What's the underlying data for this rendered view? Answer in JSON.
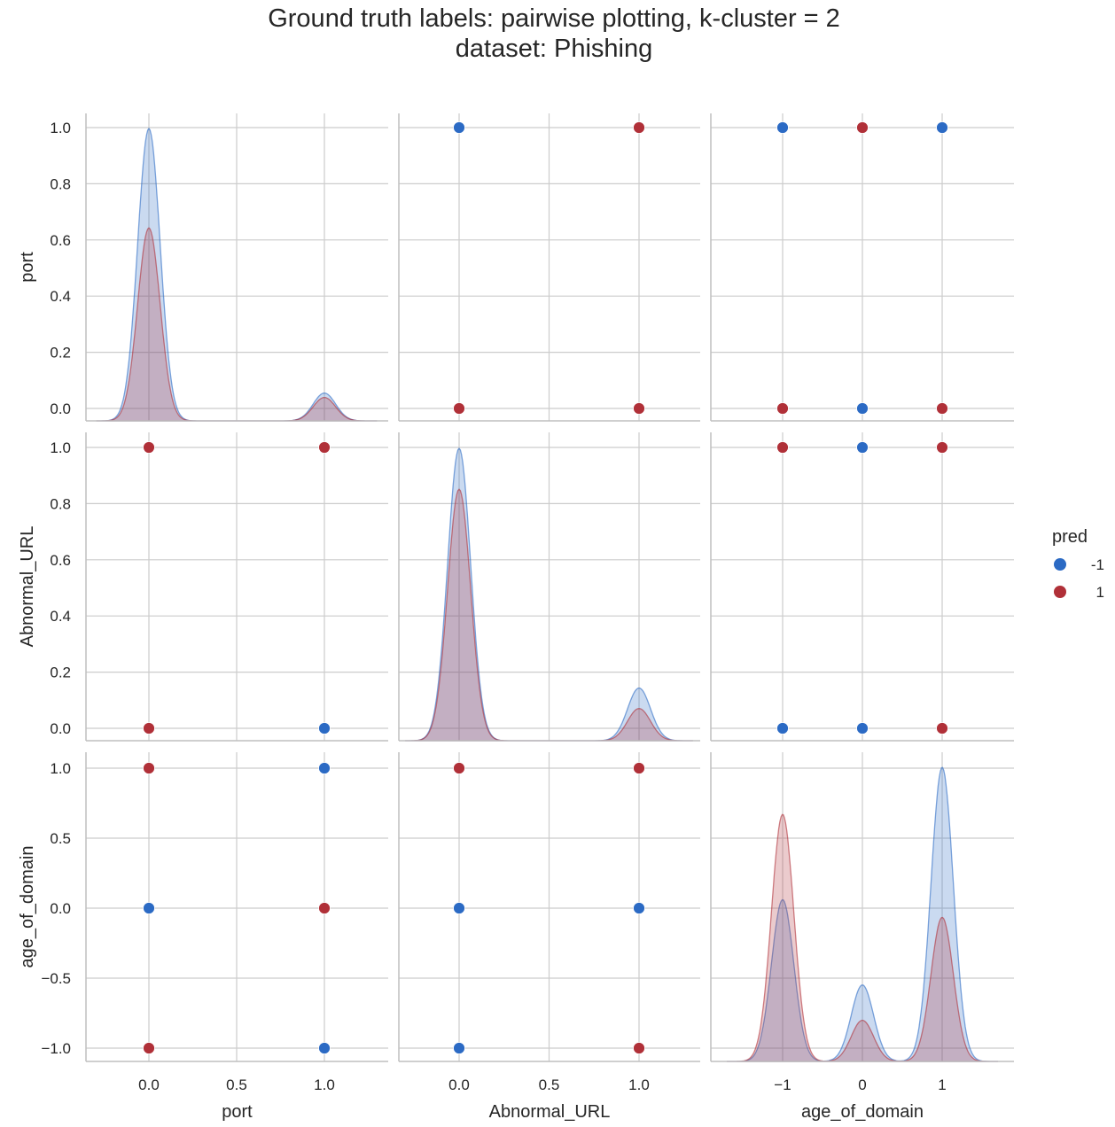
{
  "title": {
    "line1": "Ground truth labels: pairwise plotting, k-cluster = 2",
    "line2": "dataset: Phishing"
  },
  "colors": {
    "neg1": "#2b6ac4",
    "pos1": "#b03038",
    "grid": "#cccccc",
    "spine": "#bfbfbf"
  },
  "chart_data": {
    "type": "scatter",
    "kind": "pairplot",
    "variables": [
      "port",
      "Abnormal_URL",
      "age_of_domain"
    ],
    "x_ticks": {
      "port": [
        "0.0",
        "0.5",
        "1.0"
      ],
      "Abnormal_URL": [
        "0.0",
        "0.5",
        "1.0"
      ],
      "age_of_domain": [
        "−1",
        "0",
        "1"
      ]
    },
    "y_ticks": {
      "port": [
        "0.0",
        "0.2",
        "0.4",
        "0.6",
        "0.8",
        "1.0"
      ],
      "Abnormal_URL": [
        "0.0",
        "0.2",
        "0.4",
        "0.6",
        "0.8",
        "1.0"
      ],
      "age_of_domain": [
        "−1.0",
        "−0.5",
        "0.0",
        "0.5",
        "1.0"
      ]
    },
    "legend": {
      "title": "pred",
      "placement": "right",
      "entries": [
        {
          "label": "-1",
          "color": "#2b6ac4"
        },
        {
          "label": "1",
          "color": "#b03038"
        }
      ]
    },
    "scatter": {
      "port|Abnormal_URL": [
        {
          "x": 0,
          "y": 1,
          "pred": "1"
        },
        {
          "x": 1,
          "y": 1,
          "pred": "1"
        },
        {
          "x": 0,
          "y": 0,
          "pred": "1"
        },
        {
          "x": 1,
          "y": 0,
          "pred": "-1"
        }
      ],
      "port|age_of_domain": [
        {
          "x": 0,
          "y": 1,
          "pred": "1"
        },
        {
          "x": 1,
          "y": 1,
          "pred": "-1"
        },
        {
          "x": 0,
          "y": 0,
          "pred": "-1"
        },
        {
          "x": 1,
          "y": 0,
          "pred": "1"
        },
        {
          "x": 0,
          "y": -1,
          "pred": "1"
        },
        {
          "x": 1,
          "y": -1,
          "pred": "-1"
        }
      ],
      "Abnormal_URL|port": [
        {
          "x": 0,
          "y": 1,
          "pred": "-1"
        },
        {
          "x": 1,
          "y": 1,
          "pred": "1"
        },
        {
          "x": 0,
          "y": 0,
          "pred": "1"
        },
        {
          "x": 1,
          "y": 0,
          "pred": "1"
        }
      ],
      "Abnormal_URL|age_of_domain": [
        {
          "x": 0,
          "y": 1,
          "pred": "1"
        },
        {
          "x": 1,
          "y": 1,
          "pred": "1"
        },
        {
          "x": 0,
          "y": 0,
          "pred": "-1"
        },
        {
          "x": 1,
          "y": 0,
          "pred": "-1"
        },
        {
          "x": 0,
          "y": -1,
          "pred": "-1"
        },
        {
          "x": 1,
          "y": -1,
          "pred": "1"
        }
      ],
      "age_of_domain|port": [
        {
          "x": -1,
          "y": 1,
          "pred": "-1"
        },
        {
          "x": 0,
          "y": 1,
          "pred": "1"
        },
        {
          "x": 1,
          "y": 1,
          "pred": "-1"
        },
        {
          "x": -1,
          "y": 0,
          "pred": "1"
        },
        {
          "x": 0,
          "y": 0,
          "pred": "-1"
        },
        {
          "x": 1,
          "y": 0,
          "pred": "1"
        }
      ],
      "age_of_domain|Abnormal_URL": [
        {
          "x": -1,
          "y": 1,
          "pred": "1"
        },
        {
          "x": 0,
          "y": 1,
          "pred": "-1"
        },
        {
          "x": 1,
          "y": 1,
          "pred": "1"
        },
        {
          "x": -1,
          "y": 0,
          "pred": "-1"
        },
        {
          "x": 0,
          "y": 0,
          "pred": "-1"
        },
        {
          "x": 1,
          "y": 0,
          "pred": "1"
        }
      ]
    },
    "kde": {
      "port": {
        "-1": [
          {
            "mu": 0,
            "amp": 1.0
          },
          {
            "mu": 1,
            "amp": 0.095
          }
        ],
        "1": [
          {
            "mu": 0,
            "amp": 0.66
          },
          {
            "mu": 1,
            "amp": 0.08
          }
        ]
      },
      "Abnormal_URL": {
        "-1": [
          {
            "mu": 0,
            "amp": 1.0
          },
          {
            "mu": 1,
            "amp": 0.18
          }
        ],
        "1": [
          {
            "mu": 0,
            "amp": 0.86
          },
          {
            "mu": 1,
            "amp": 0.11
          }
        ]
      },
      "age_of_domain": {
        "-1": [
          {
            "mu": -1,
            "amp": 0.55
          },
          {
            "mu": 0,
            "amp": 0.26
          },
          {
            "mu": 1,
            "amp": 1.0
          }
        ],
        "1": [
          {
            "mu": -1,
            "amp": 0.84
          },
          {
            "mu": 0,
            "amp": 0.14
          },
          {
            "mu": 1,
            "amp": 0.49
          }
        ]
      }
    }
  }
}
